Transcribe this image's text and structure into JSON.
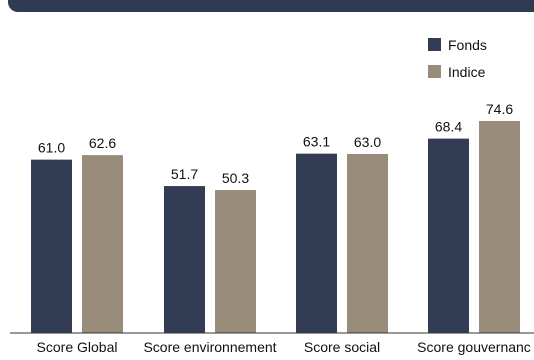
{
  "colors": {
    "header": "#2f3b52",
    "fonds": "#323c55",
    "indice": "#9a8c7a",
    "axis": "#333333"
  },
  "chart_data": {
    "type": "bar",
    "categories": [
      "Score Global",
      "Score environnement",
      "Score social",
      "Score gouvernanc"
    ],
    "series": [
      {
        "name": "Fonds",
        "values": [
          61.0,
          51.7,
          63.1,
          68.4
        ],
        "labels": [
          "61.0",
          "51.7",
          "63.1",
          "68.4"
        ]
      },
      {
        "name": "Indice",
        "values": [
          62.6,
          50.3,
          63.0,
          74.6
        ],
        "labels": [
          "62.6",
          "50.3",
          "63.0",
          "74.6"
        ]
      }
    ],
    "ylim": [
      0,
      100
    ],
    "grid": false,
    "legend_position": "top-right"
  }
}
